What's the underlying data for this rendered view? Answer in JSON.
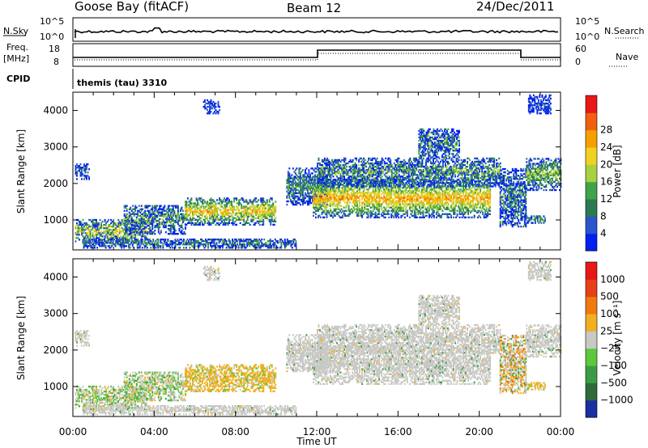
{
  "header": {
    "station": "Goose Bay (fitACF)",
    "beam": "Beam 12",
    "date": "24/Dec/2011"
  },
  "top_panels": {
    "nsky_label": "N.Sky",
    "nsearch_label": "N.Search",
    "freq_label_line1": "Freq.",
    "freq_label_line2": "[MHz]",
    "nave_label": "Nave",
    "cpid_label": "CPID",
    "cpid_value": "themis (tau) 3310",
    "noise_ticks": [
      "10^5",
      "10^0"
    ],
    "freq_ticks": [
      "18",
      "8"
    ],
    "nave_ticks": [
      "60",
      "0"
    ]
  },
  "chart_data": [
    {
      "type": "heatmap",
      "name": "power-panel",
      "ylabel": "Slant Range [km]",
      "xlabel": "",
      "yticks": [
        1000,
        2000,
        3000,
        4000
      ],
      "ylim": [
        180,
        4500
      ],
      "xlim_hours": [
        0,
        24
      ],
      "colorbar_label": "Power [dB]",
      "colorbar_ticks": [
        "4",
        "8",
        "12",
        "16",
        "20",
        "24",
        "28"
      ],
      "colorbar_colors": [
        "#0022ee",
        "#2a55cc",
        "#2c7a52",
        "#3fa34a",
        "#a8d040",
        "#f0d020",
        "#f5a000",
        "#f06010",
        "#e81818"
      ]
    },
    {
      "type": "heatmap",
      "name": "velocity-panel",
      "ylabel": "Slant Range [km]",
      "xlabel": "Time UT",
      "yticks": [
        1000,
        2000,
        3000,
        4000
      ],
      "xticks": [
        "00:00",
        "04:00",
        "08:00",
        "12:00",
        "16:00",
        "20:00",
        "00:00"
      ],
      "ylim": [
        180,
        4500
      ],
      "xlim_hours": [
        0,
        24
      ],
      "colorbar_label": "Velocity [m s⁻¹]",
      "colorbar_ticks": [
        "1000",
        "500",
        "100",
        "25",
        "−25",
        "−100",
        "−500",
        "−1000"
      ],
      "colorbar_colors": [
        "#1a2fa0",
        "#2e6a3a",
        "#3c9c46",
        "#5cc83c",
        "#c8c8c4",
        "#f0b020",
        "#f07a10",
        "#e84018",
        "#e81818"
      ]
    }
  ]
}
